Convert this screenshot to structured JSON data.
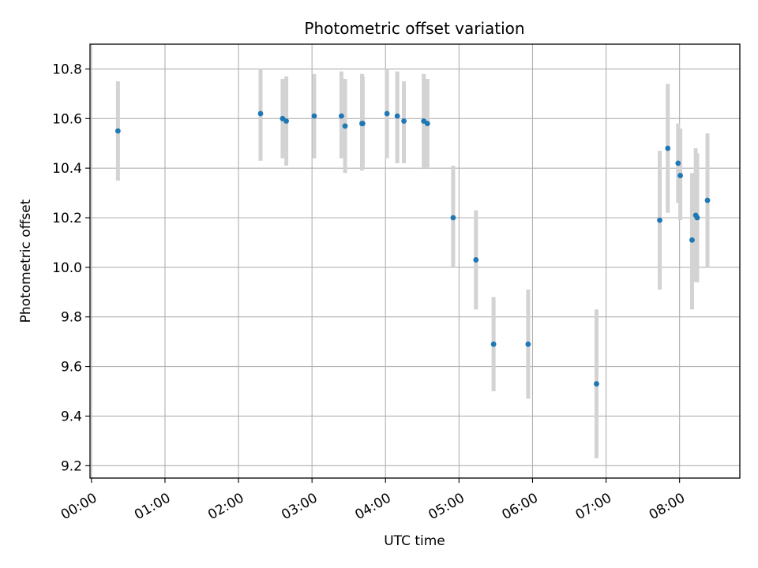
{
  "chart_data": {
    "type": "scatter",
    "title": "Photometric offset variation",
    "xlabel": "UTC time",
    "ylabel": "Photometric offset",
    "x_unit": "hours",
    "xlim": [
      -0.02,
      8.82
    ],
    "ylim": [
      9.15,
      10.9
    ],
    "x_ticks": [
      {
        "value": 0,
        "label": "00:00"
      },
      {
        "value": 1,
        "label": "01:00"
      },
      {
        "value": 2,
        "label": "02:00"
      },
      {
        "value": 3,
        "label": "03:00"
      },
      {
        "value": 4,
        "label": "04:00"
      },
      {
        "value": 5,
        "label": "05:00"
      },
      {
        "value": 6,
        "label": "06:00"
      },
      {
        "value": 7,
        "label": "07:00"
      },
      {
        "value": 8,
        "label": "08:00"
      }
    ],
    "y_ticks": [
      {
        "value": 9.2,
        "label": "9.2"
      },
      {
        "value": 9.4,
        "label": "9.4"
      },
      {
        "value": 9.6,
        "label": "9.6"
      },
      {
        "value": 9.8,
        "label": "9.8"
      },
      {
        "value": 10.0,
        "label": "10.0"
      },
      {
        "value": 10.2,
        "label": "10.2"
      },
      {
        "value": 10.4,
        "label": "10.4"
      },
      {
        "value": 10.6,
        "label": "10.6"
      },
      {
        "value": 10.8,
        "label": "10.8"
      }
    ],
    "grid": true,
    "marker_color": "#1f77b4",
    "errorbar_color": "#d3d3d3",
    "points": [
      {
        "x": 0.36,
        "y": 10.55,
        "low": 10.35,
        "high": 10.75
      },
      {
        "x": 2.3,
        "y": 10.62,
        "low": 10.43,
        "high": 10.8
      },
      {
        "x": 2.6,
        "y": 10.6,
        "low": 10.44,
        "high": 10.76
      },
      {
        "x": 2.65,
        "y": 10.59,
        "low": 10.41,
        "high": 10.77
      },
      {
        "x": 3.03,
        "y": 10.61,
        "low": 10.44,
        "high": 10.78
      },
      {
        "x": 3.4,
        "y": 10.61,
        "low": 10.44,
        "high": 10.79
      },
      {
        "x": 3.45,
        "y": 10.57,
        "low": 10.38,
        "high": 10.76
      },
      {
        "x": 3.68,
        "y": 10.58,
        "low": 10.39,
        "high": 10.78
      },
      {
        "x": 3.69,
        "y": 10.58,
        "low": 10.4,
        "high": 10.77
      },
      {
        "x": 4.02,
        "y": 10.62,
        "low": 10.44,
        "high": 10.8
      },
      {
        "x": 4.16,
        "y": 10.61,
        "low": 10.42,
        "high": 10.79
      },
      {
        "x": 4.25,
        "y": 10.59,
        "low": 10.42,
        "high": 10.75
      },
      {
        "x": 4.52,
        "y": 10.59,
        "low": 10.4,
        "high": 10.78
      },
      {
        "x": 4.57,
        "y": 10.58,
        "low": 10.4,
        "high": 10.76
      },
      {
        "x": 4.92,
        "y": 10.2,
        "low": 10.0,
        "high": 10.41
      },
      {
        "x": 5.23,
        "y": 10.03,
        "low": 9.83,
        "high": 10.23
      },
      {
        "x": 5.47,
        "y": 9.69,
        "low": 9.5,
        "high": 9.88
      },
      {
        "x": 5.94,
        "y": 9.69,
        "low": 9.47,
        "high": 9.91
      },
      {
        "x": 6.87,
        "y": 9.53,
        "low": 9.23,
        "high": 9.83
      },
      {
        "x": 7.73,
        "y": 10.19,
        "low": 9.91,
        "high": 10.47
      },
      {
        "x": 7.84,
        "y": 10.48,
        "low": 10.22,
        "high": 10.74
      },
      {
        "x": 7.98,
        "y": 10.42,
        "low": 10.26,
        "high": 10.58
      },
      {
        "x": 8.01,
        "y": 10.37,
        "low": 10.19,
        "high": 10.56
      },
      {
        "x": 8.17,
        "y": 10.11,
        "low": 9.83,
        "high": 10.38
      },
      {
        "x": 8.22,
        "y": 10.21,
        "low": 9.94,
        "high": 10.48
      },
      {
        "x": 8.24,
        "y": 10.2,
        "low": 9.94,
        "high": 10.46
      },
      {
        "x": 8.38,
        "y": 10.27,
        "low": 10.0,
        "high": 10.54
      }
    ]
  }
}
